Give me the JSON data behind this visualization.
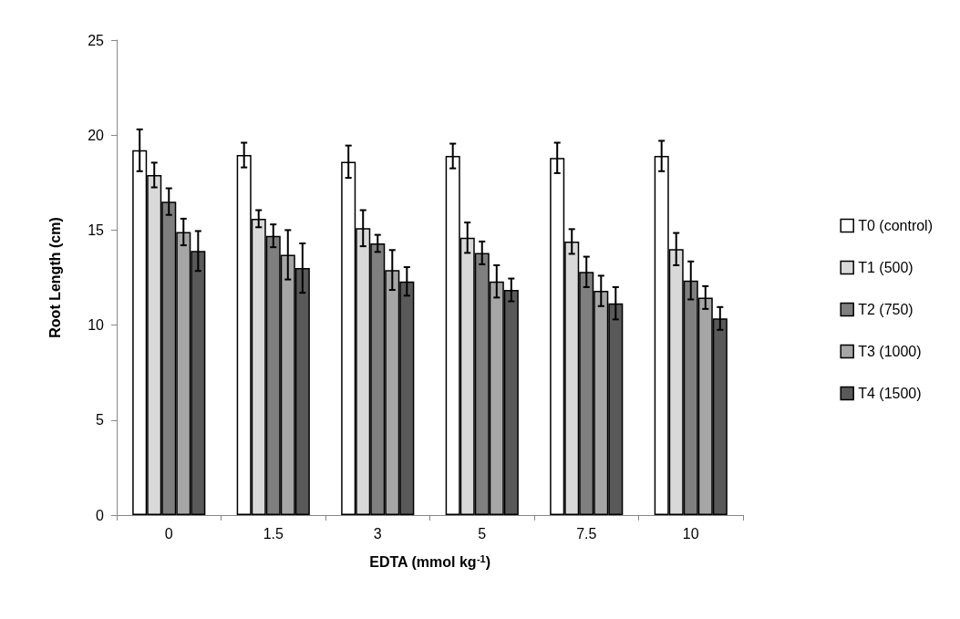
{
  "chart_data": {
    "type": "bar",
    "xlabel": "EDTA (mmol kg$^{-1}$)",
    "ylabel": "Root Length (cm)",
    "categories": [
      "0",
      "1.5",
      "3",
      "5",
      "7.5",
      "10"
    ],
    "ylim": [
      0,
      25
    ],
    "yticks": [
      0,
      5,
      10,
      15,
      20,
      25
    ],
    "grid": false,
    "legend": "right",
    "series": [
      {
        "name": "T0 (control)",
        "color": "#ffffff",
        "values": [
          19.2,
          18.95,
          18.6,
          18.9,
          18.8,
          18.9
        ],
        "errors": [
          1.1,
          0.65,
          0.85,
          0.65,
          0.8,
          0.8
        ]
      },
      {
        "name": "T1 (500)",
        "color": "#d9d9d9",
        "values": [
          17.9,
          15.6,
          15.1,
          14.6,
          14.4,
          14.0
        ],
        "errors": [
          0.65,
          0.45,
          0.95,
          0.8,
          0.65,
          0.85
        ]
      },
      {
        "name": "T2 (750)",
        "color": "#7f7f7f",
        "values": [
          16.5,
          14.7,
          14.3,
          13.8,
          12.8,
          12.35
        ],
        "errors": [
          0.7,
          0.6,
          0.45,
          0.6,
          0.8,
          1.0
        ]
      },
      {
        "name": "T3 (1000)",
        "color": "#a6a6a6",
        "values": [
          14.9,
          13.7,
          12.9,
          12.3,
          11.8,
          11.45
        ],
        "errors": [
          0.7,
          1.3,
          1.05,
          0.85,
          0.8,
          0.6
        ]
      },
      {
        "name": "T4 (1500)",
        "color": "#595959",
        "values": [
          13.9,
          13.0,
          12.3,
          11.85,
          11.15,
          10.35
        ],
        "errors": [
          1.05,
          1.3,
          0.75,
          0.6,
          0.85,
          0.6
        ]
      }
    ]
  }
}
